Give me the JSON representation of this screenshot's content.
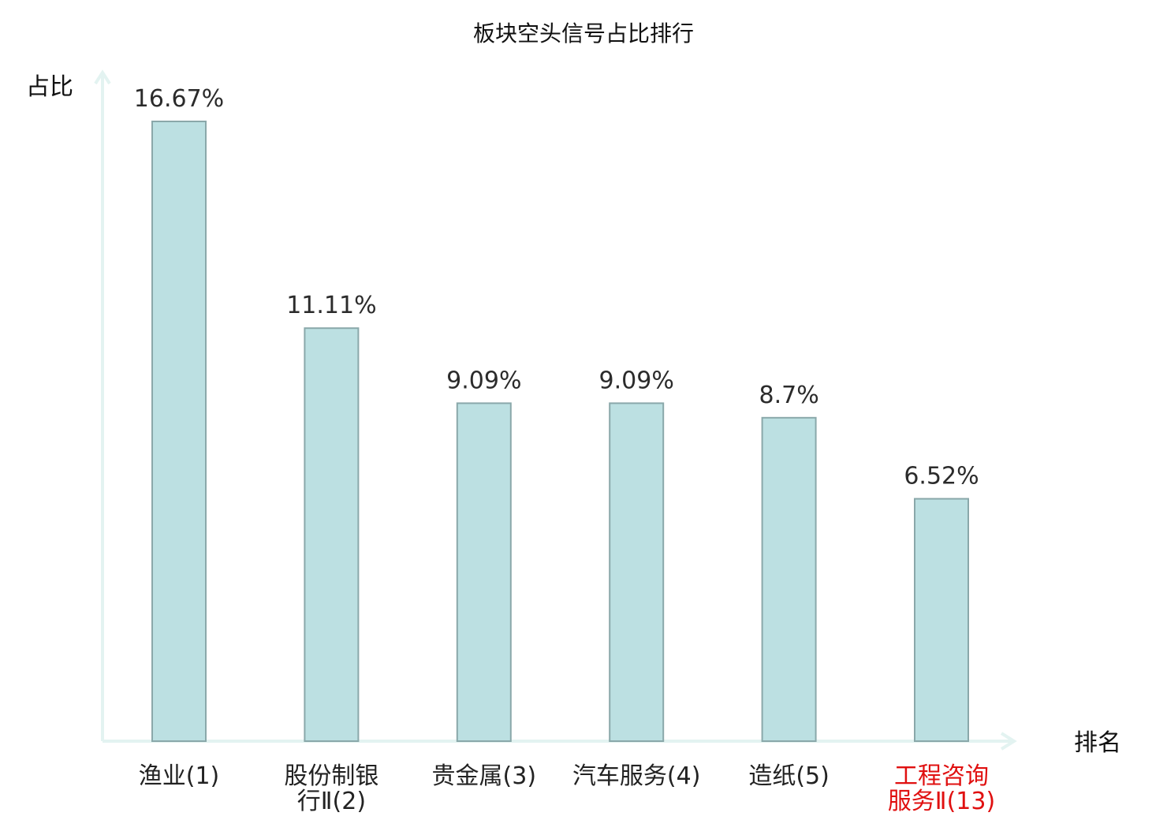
{
  "chart_data": {
    "type": "bar",
    "title": "板块空头信号占比排行",
    "ylabel": "占比",
    "xlabel": "排名",
    "ylim": [
      0,
      18.2
    ],
    "categories": [
      {
        "lines": [
          "渔业(1)"
        ],
        "highlight": false
      },
      {
        "lines": [
          "股份制银",
          "行Ⅱ(2)"
        ],
        "highlight": false
      },
      {
        "lines": [
          "贵金属(3)"
        ],
        "highlight": false
      },
      {
        "lines": [
          "汽车服务(4)"
        ],
        "highlight": false
      },
      {
        "lines": [
          "造纸(5)"
        ],
        "highlight": false
      },
      {
        "lines": [
          "工程咨询",
          "服务Ⅱ(13)"
        ],
        "highlight": true
      }
    ],
    "values": [
      16.67,
      11.11,
      9.09,
      9.09,
      8.7,
      6.52
    ],
    "value_labels": [
      "16.67%",
      "11.11%",
      "9.09%",
      "9.09%",
      "8.7%",
      "6.52%"
    ],
    "grid": false,
    "colors": {
      "bar_fill": "#bce0e2",
      "bar_stroke": "#8aa8aa",
      "axis": "#e3f3f1",
      "label_normal": "#222222",
      "label_highlight": "#e01010"
    }
  }
}
